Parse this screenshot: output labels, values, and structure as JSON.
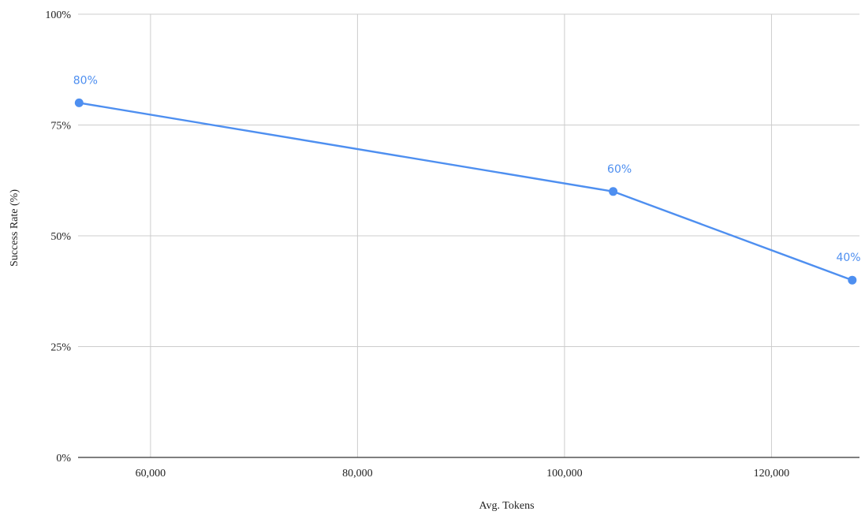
{
  "chart_data": {
    "type": "line",
    "title": "",
    "xlabel": "Avg. Tokens",
    "ylabel": "Success Rate (%)",
    "xlim": [
      53000,
      128500
    ],
    "ylim": [
      0,
      100
    ],
    "x_ticks": [
      {
        "value": 60000,
        "label": "60,000"
      },
      {
        "value": 80000,
        "label": "80,000"
      },
      {
        "value": 100000,
        "label": "100,000"
      },
      {
        "value": 120000,
        "label": "120,000"
      }
    ],
    "y_ticks": [
      {
        "value": 0,
        "label": "0%"
      },
      {
        "value": 25,
        "label": "25%"
      },
      {
        "value": 50,
        "label": "50%"
      },
      {
        "value": 75,
        "label": "75%"
      },
      {
        "value": 100,
        "label": "100%"
      }
    ],
    "grid": true,
    "legend": "none",
    "series": [
      {
        "color": "#4e8ff0",
        "points": [
          {
            "x": 53100,
            "y": 80,
            "label": "80%"
          },
          {
            "x": 104700,
            "y": 60,
            "label": "60%"
          },
          {
            "x": 127800,
            "y": 40,
            "label": "40%"
          }
        ]
      }
    ]
  }
}
